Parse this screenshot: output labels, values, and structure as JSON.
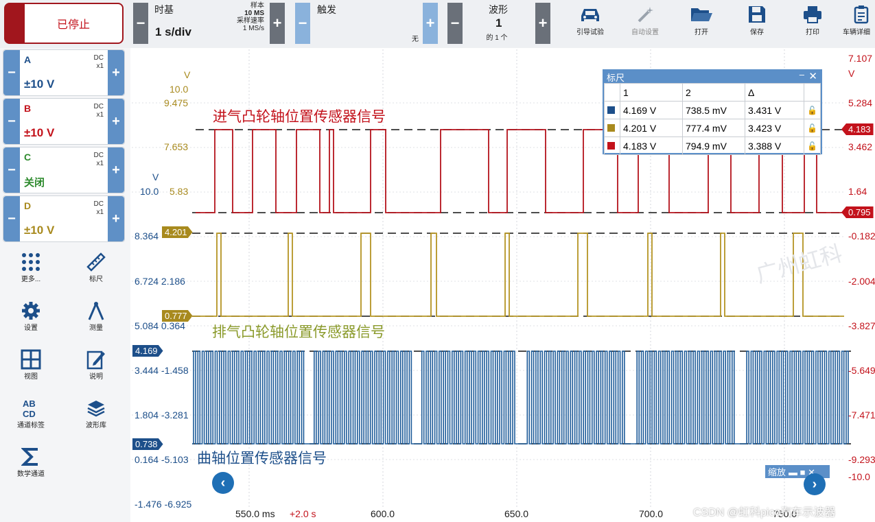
{
  "toolbar": {
    "stop_label": "已停止",
    "timebase": {
      "label": "时基",
      "value": "1 s/div",
      "samples_label": "样本",
      "samples_value": "10 MS",
      "rate_label": "采样速率",
      "rate_value": "1 MS/s"
    },
    "trigger": {
      "label": "触发",
      "mode": "无"
    },
    "waveform": {
      "label": "波形",
      "value": "1",
      "of": "的 1 个"
    },
    "tools": [
      {
        "label": "引导试验",
        "icon": "car-icon"
      },
      {
        "label": "自动设置",
        "icon": "wand-icon"
      },
      {
        "label": "打开",
        "icon": "folder-icon"
      },
      {
        "label": "保存",
        "icon": "floppy-icon"
      },
      {
        "label": "打印",
        "icon": "printer-icon"
      },
      {
        "label": "车辆详细",
        "icon": "clipboard-icon"
      }
    ]
  },
  "channels": [
    {
      "name": "A",
      "coupling": "DC",
      "probe": "x1",
      "range": "±10 V",
      "color": "#1d4f8a"
    },
    {
      "name": "B",
      "coupling": "DC",
      "probe": "x1",
      "range": "±10 V",
      "color": "#c3121b"
    },
    {
      "name": "C",
      "coupling": "DC",
      "probe": "x1",
      "range": "关闭",
      "color": "#2d8a2d"
    },
    {
      "name": "D",
      "coupling": "DC",
      "probe": "x1",
      "range": "±10 V",
      "color": "#a88a1e"
    }
  ],
  "side_tools": [
    {
      "label": "更多...",
      "icon": "grid-dots-icon"
    },
    {
      "label": "标尺",
      "icon": "ruler-icon"
    },
    {
      "label": "设置",
      "icon": "gear-icon"
    },
    {
      "label": "测量",
      "icon": "compass-icon"
    },
    {
      "label": "视图",
      "icon": "view-grid-icon"
    },
    {
      "label": "说明",
      "icon": "note-icon"
    },
    {
      "label": "通道标签",
      "icon": "abcd-icon"
    },
    {
      "label": "波形库",
      "icon": "stack-icon"
    },
    {
      "label": "数学通道",
      "icon": "sigma-icon"
    }
  ],
  "axes": {
    "b_scale": {
      "unit": "V",
      "top": "10.0",
      "ticks": [
        "9.475",
        "7.653",
        "5.83"
      ]
    },
    "d_scale": {
      "unit": "V",
      "top": "10.0"
    },
    "left_labels": [
      "8.364",
      "6.724 2.186",
      "5.084 0.364",
      "3.444 -1.458",
      "1.804 -3.281",
      "0.164 -5.103",
      "-1.476 -6.925"
    ],
    "right_labels": [
      "7.107",
      "V",
      "5.284",
      "3.462",
      "1.64",
      "-0.182",
      "-2.004",
      "-3.827",
      "-5.649",
      "-7.471",
      "-9.293",
      "-10.0"
    ],
    "x_labels": [
      "550.0 ms",
      "+2.0 s",
      "600.0",
      "650.0",
      "700.0",
      "750.0"
    ]
  },
  "markers": {
    "d_high": "4.201",
    "d_low": "0.777",
    "a_high": "4.169",
    "a_low": "0.738",
    "b_high": "4.183",
    "b_low": "0.795"
  },
  "signals": {
    "intake": "进气凸轮轴位置传感器信号",
    "exhaust": "排气凸轮轴位置传感器信号",
    "crank": "曲轴位置传感器信号"
  },
  "ruler_panel": {
    "title": "标尺",
    "headers": [
      "1",
      "2",
      "Δ"
    ],
    "rows": [
      {
        "color": "#1d4f8a",
        "v1": "4.169 V",
        "v2": "738.5 mV",
        "delta": "3.431 V"
      },
      {
        "color": "#a88a1e",
        "v1": "4.201 V",
        "v2": "777.4 mV",
        "delta": "3.423 V"
      },
      {
        "color": "#c3121b",
        "v1": "4.183 V",
        "v2": "794.9 mV",
        "delta": "3.388 V"
      }
    ]
  },
  "zoom_label": "缩放",
  "watermark": "CSDN @虹科pico汽车示波器",
  "watermark2": "广州虹科"
}
